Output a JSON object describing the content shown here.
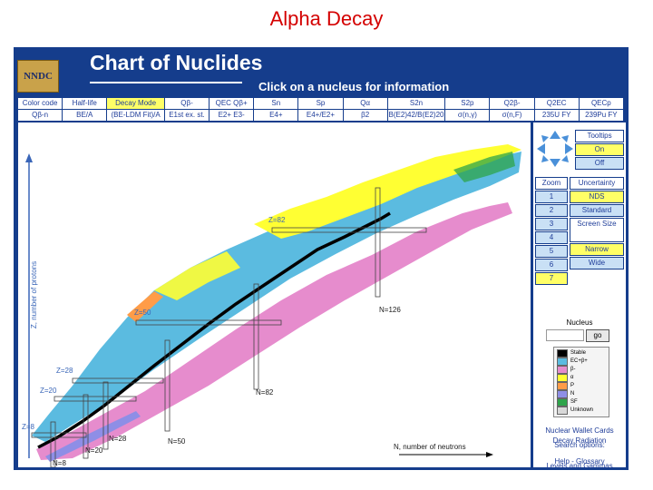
{
  "slide_title": "Alpha Decay",
  "app": {
    "logo": "NNDC",
    "title": "Chart of Nuclides",
    "instruction": "Click on a nucleus for information"
  },
  "table_row1": [
    "Color code",
    "Half-life",
    "Decay Mode",
    "Qβ-",
    "QEC Qβ+",
    "Sn",
    "Sp",
    "Qα",
    "S2n",
    "S2p",
    "Q2β-",
    "Q2EC",
    "QECp"
  ],
  "table_row2": [
    "Qβ-n",
    "BE/A",
    "(BE-LDM Fit)/A",
    "E1st ex. st.",
    "E2+ E3-",
    "E4+",
    "E4+/E2+",
    "β2",
    "B(E2)42/B(E2)20",
    "σ(n,γ)",
    "σ(n,F)",
    "235U FY",
    "239Pu FY"
  ],
  "chart": {
    "y_axis_label": "Z, number of protons",
    "x_axis_label": "N, number of neutrons",
    "magic": {
      "z8": "Z=8",
      "z20": "Z=20",
      "z28": "Z=28",
      "z50": "Z=50",
      "z82": "Z=82",
      "n8": "N=8",
      "n20": "N=20",
      "n28": "N=28",
      "n50": "N=50",
      "n82": "N=82",
      "n126": "N=126"
    },
    "colors": {
      "stable": "#000000",
      "ec_beta_plus": "#5bbbe0",
      "beta_minus": "#e68ccd",
      "alpha": "#ffff33",
      "proton": "#ff9c48",
      "neutron": "#8e8ee6",
      "sf": "#2ea44a",
      "unknown": "#d8d8d8"
    }
  },
  "sidebar": {
    "tooltips_label": "Tooltips",
    "tooltips_on": "On",
    "tooltips_off": "Off",
    "zoom_label": "Zoom",
    "zoom_levels": [
      "1",
      "2",
      "3",
      "4",
      "5",
      "6",
      "7"
    ],
    "uncertainty_label": "Uncertainty",
    "uncertainty_nds": "NDS",
    "uncertainty_standard": "Standard",
    "screen_size_label": "Screen Size",
    "screen_narrow": "Narrow",
    "screen_wide": "Wide",
    "nucleus_label": "Nucleus",
    "nucleus_value": "",
    "go_label": "go",
    "legend": [
      "Stable",
      "EC+β+",
      "β-",
      "α",
      "P",
      "N",
      "SF",
      "Unknown"
    ],
    "search_options": "Search options:",
    "links": [
      "Levels and Gammas",
      "Nuclear Wallet Cards",
      "Decay Radiation"
    ],
    "help": "Help - Glossary"
  }
}
